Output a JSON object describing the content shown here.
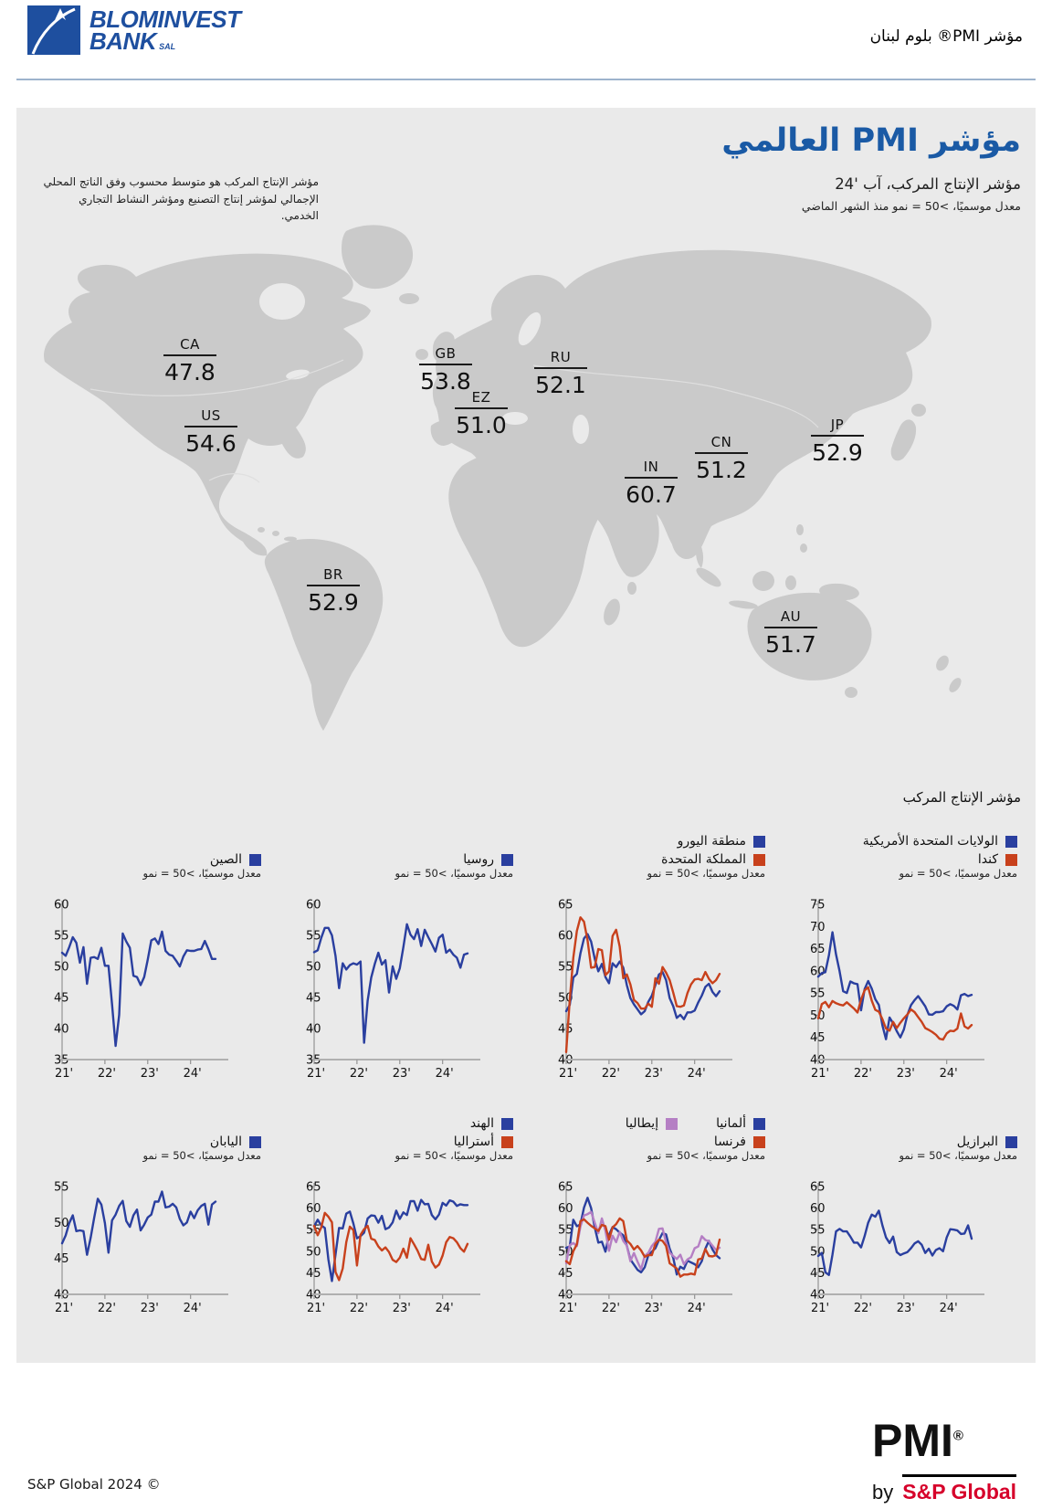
{
  "header": {
    "brand_line1": "BLOMINVEST",
    "brand_line2": "BANK",
    "brand_suffix": "SAL",
    "page_label": "مؤشر PMI® بلوم لبنان"
  },
  "report": {
    "title": "مؤشر PMI العالمي",
    "subtitle": "مؤشر الإنتاج المركب، آب '24",
    "subtitle_note": "معدل موسميًا، >50 = نمو منذ الشهر الماضي",
    "description": "مؤشر الإنتاج المركب هو متوسط محسوب وفق الناتج المحلي الإجمالي لمؤشر إنتاج التصنيع ومؤشر النشاط التجاري الخدمي."
  },
  "map": {
    "labels": [
      {
        "code": "CA",
        "value": "47.8"
      },
      {
        "code": "US",
        "value": "54.6"
      },
      {
        "code": "GB",
        "value": "53.8"
      },
      {
        "code": "EZ",
        "value": "51.0"
      },
      {
        "code": "RU",
        "value": "52.1"
      },
      {
        "code": "IN",
        "value": "60.7"
      },
      {
        "code": "CN",
        "value": "51.2"
      },
      {
        "code": "JP",
        "value": "52.9"
      },
      {
        "code": "BR",
        "value": "52.9"
      },
      {
        "code": "AU",
        "value": "51.7"
      }
    ]
  },
  "charts_section": {
    "title": "مؤشر الإنتاج المركب",
    "axis_note": "معدل موسميًا، >50 = نمو",
    "x_tick_labels": [
      "'21",
      "'22",
      "'23",
      "'24"
    ],
    "x_tick_indices": [
      0,
      12,
      24,
      36
    ]
  },
  "colors": {
    "blue": "#2a3f9f",
    "red": "#c8411c",
    "purple": "#b57fc4",
    "title_blue": "#1a5aa5",
    "brand_blue": "#1e4f9f",
    "sp_red": "#d6002a",
    "land": "#cacaca",
    "panel": "#eaeaea"
  },
  "chart_data": [
    {
      "id": "united-states-canada",
      "type": "line",
      "ylim": [
        40,
        75
      ],
      "ytick_step": 5,
      "x_range": "Jan 2021 - Aug 2024 monthly",
      "legend_rows": [
        [
          0
        ],
        [
          1
        ]
      ],
      "series": [
        {
          "name": "الولايات المتحدة الأمريكية",
          "color": "blue",
          "values": [
            58.7,
            59.5,
            59.7,
            63.5,
            68.7,
            63.7,
            59.9,
            55.4,
            55.0,
            57.6,
            57.2,
            57.0,
            51.1,
            55.9,
            57.7,
            56.0,
            53.6,
            52.3,
            47.7,
            44.6,
            49.5,
            48.2,
            46.4,
            45.0,
            46.8,
            50.1,
            52.3,
            53.4,
            54.3,
            53.2,
            52.0,
            50.2,
            50.1,
            50.7,
            50.7,
            50.9,
            52.0,
            52.5,
            52.1,
            51.3,
            54.5,
            54.8,
            54.3,
            54.6
          ]
        },
        {
          "name": "كندا",
          "color": "red",
          "values": [
            49.3,
            52.5,
            53.0,
            51.8,
            53.2,
            52.7,
            52.4,
            52.2,
            52.9,
            52.2,
            51.5,
            50.6,
            53.5,
            55.6,
            56.3,
            53.3,
            51.2,
            50.8,
            49.1,
            47.0,
            46.5,
            48.5,
            47.1,
            48.3,
            49.3,
            50.2,
            51.3,
            50.7,
            49.6,
            48.5,
            47.1,
            46.7,
            46.2,
            45.6,
            44.7,
            44.5,
            45.9,
            46.5,
            46.4,
            47.0,
            50.4,
            47.5,
            47.0,
            47.8
          ]
        }
      ]
    },
    {
      "id": "eurozone-uk",
      "type": "line",
      "ylim": [
        40,
        65
      ],
      "ytick_step": 5,
      "x_range": "Jan 2021 - Aug 2024 monthly",
      "legend_rows": [
        [
          0
        ],
        [
          1
        ]
      ],
      "series": [
        {
          "name": "منطقة اليورو",
          "color": "blue",
          "values": [
            47.8,
            48.8,
            53.2,
            53.8,
            57.1,
            59.5,
            60.2,
            59.0,
            56.2,
            54.2,
            55.4,
            53.3,
            52.3,
            55.5,
            54.9,
            55.8,
            54.8,
            52.0,
            49.9,
            48.9,
            48.1,
            47.3,
            47.8,
            49.3,
            50.3,
            52.0,
            53.7,
            54.1,
            52.8,
            49.9,
            48.6,
            46.7,
            47.2,
            46.5,
            47.6,
            47.6,
            47.9,
            49.2,
            50.3,
            51.7,
            52.2,
            50.9,
            50.2,
            51.0
          ]
        },
        {
          "name": "المملكة المتحدة",
          "color": "red",
          "values": [
            41.2,
            49.6,
            56.4,
            60.7,
            62.9,
            62.2,
            59.2,
            54.8,
            54.9,
            57.8,
            57.6,
            53.6,
            54.2,
            59.9,
            60.9,
            58.2,
            53.1,
            53.7,
            52.1,
            49.6,
            49.1,
            48.2,
            48.2,
            49.0,
            48.5,
            53.1,
            52.2,
            54.9,
            54.0,
            52.8,
            50.8,
            48.6,
            48.5,
            48.7,
            50.7,
            52.1,
            52.9,
            53.0,
            52.8,
            54.1,
            53.0,
            52.3,
            52.8,
            53.8
          ]
        }
      ]
    },
    {
      "id": "russia",
      "type": "line",
      "ylim": [
        35,
        60
      ],
      "ytick_step": 5,
      "x_range": "Jan 2021 - Aug 2024 monthly",
      "legend_rows": [
        [
          0
        ]
      ],
      "series": [
        {
          "name": "روسيا",
          "color": "blue",
          "values": [
            52.3,
            52.6,
            54.6,
            56.2,
            56.2,
            55.0,
            51.7,
            46.5,
            50.5,
            49.5,
            50.2,
            50.5,
            50.3,
            50.8,
            37.7,
            44.5,
            48.2,
            50.4,
            52.2,
            50.3,
            51.0,
            45.8,
            50.0,
            48.0,
            49.7,
            53.1,
            56.8,
            55.1,
            54.4,
            56.0,
            53.3,
            55.9,
            54.7,
            53.6,
            52.4,
            54.6,
            55.1,
            52.2,
            52.7,
            51.9,
            51.4,
            49.8,
            51.9,
            52.1
          ]
        }
      ]
    },
    {
      "id": "china",
      "type": "line",
      "ylim": [
        35,
        60
      ],
      "ytick_step": 5,
      "x_range": "Jan 2021 - Aug 2024 monthly",
      "legend_rows": [
        [
          0
        ]
      ],
      "series": [
        {
          "name": "الصين",
          "color": "blue",
          "values": [
            52.2,
            51.7,
            53.1,
            54.7,
            53.8,
            50.6,
            53.1,
            47.2,
            51.4,
            51.5,
            51.2,
            53.0,
            50.1,
            50.1,
            43.9,
            37.2,
            42.2,
            55.3,
            54.0,
            53.0,
            48.5,
            48.3,
            47.0,
            48.3,
            51.1,
            54.2,
            54.5,
            53.6,
            55.6,
            52.5,
            51.9,
            51.7,
            50.9,
            50.0,
            51.6,
            52.6,
            52.5,
            52.5,
            52.7,
            52.8,
            54.1,
            52.8,
            51.2,
            51.2
          ]
        }
      ]
    },
    {
      "id": "brazil",
      "type": "line",
      "ylim": [
        40,
        65
      ],
      "ytick_step": 5,
      "x_range": "Jan 2021 - Aug 2024 monthly",
      "legend_rows": [
        [
          0
        ]
      ],
      "series": [
        {
          "name": "البرازيل",
          "color": "blue",
          "values": [
            48.9,
            49.6,
            45.1,
            44.5,
            49.2,
            54.6,
            55.2,
            54.6,
            54.6,
            53.4,
            52.0,
            52.0,
            50.9,
            53.5,
            56.6,
            58.5,
            58.0,
            59.4,
            56.0,
            53.2,
            51.9,
            53.4,
            49.8,
            49.1,
            49.5,
            49.8,
            50.7,
            51.8,
            52.3,
            51.5,
            49.6,
            50.6,
            49.0,
            50.3,
            50.7,
            50.0,
            53.2,
            55.1,
            55.0,
            54.8,
            54.0,
            54.1,
            56.0,
            52.9
          ]
        }
      ]
    },
    {
      "id": "germany-italy-france",
      "type": "line",
      "ylim": [
        40,
        65
      ],
      "ytick_step": 5,
      "x_range": "Jan 2021 - Aug 2024 monthly",
      "legend_rows": [
        [
          0,
          1
        ],
        [
          2
        ]
      ],
      "series": [
        {
          "name": "ألمانيا",
          "color": "blue",
          "values": [
            50.8,
            51.1,
            57.3,
            55.8,
            56.2,
            60.1,
            62.4,
            60.0,
            55.5,
            52.0,
            52.2,
            49.9,
            53.8,
            55.6,
            55.1,
            54.3,
            53.7,
            51.3,
            48.1,
            46.9,
            45.7,
            45.1,
            46.3,
            49.0,
            49.9,
            50.7,
            52.6,
            54.2,
            53.9,
            50.6,
            48.5,
            44.6,
            46.4,
            45.9,
            47.8,
            47.4,
            47.0,
            46.3,
            47.7,
            50.6,
            52.4,
            50.4,
            49.1,
            48.4
          ]
        },
        {
          "name": "إيطاليا",
          "color": "purple",
          "values": [
            47.2,
            51.4,
            51.9,
            51.2,
            55.7,
            58.3,
            58.6,
            59.1,
            56.6,
            54.2,
            57.6,
            54.7,
            50.1,
            53.6,
            52.1,
            54.5,
            52.4,
            51.3,
            47.7,
            49.6,
            47.6,
            45.8,
            48.9,
            49.6,
            51.2,
            52.2,
            55.2,
            55.3,
            52.0,
            49.7,
            48.9,
            48.2,
            49.2,
            47.0,
            48.1,
            48.6,
            50.7,
            51.1,
            53.5,
            52.6,
            52.3,
            51.3,
            50.3,
            50.8
          ]
        },
        {
          "name": "فرنسا",
          "color": "red",
          "values": [
            47.7,
            47.0,
            50.0,
            51.6,
            57.0,
            57.4,
            56.6,
            55.9,
            55.3,
            54.7,
            56.1,
            55.8,
            52.7,
            55.5,
            56.3,
            57.6,
            57.0,
            52.5,
            51.7,
            50.4,
            51.2,
            50.2,
            48.7,
            49.1,
            49.1,
            51.7,
            52.7,
            52.4,
            51.2,
            47.2,
            46.6,
            46.0,
            44.1,
            44.6,
            44.6,
            44.8,
            44.6,
            48.1,
            48.3,
            50.5,
            48.9,
            48.8,
            49.1,
            52.7
          ]
        }
      ]
    },
    {
      "id": "india-australia",
      "type": "line",
      "ylim": [
        40,
        65
      ],
      "ytick_step": 5,
      "x_range": "Jan 2021 - Aug 2024 monthly",
      "legend_rows": [
        [
          0
        ],
        [
          1
        ]
      ],
      "series": [
        {
          "name": "الهند",
          "color": "blue",
          "values": [
            55.8,
            57.3,
            56.0,
            55.4,
            48.1,
            43.1,
            49.2,
            55.4,
            55.3,
            58.7,
            59.2,
            56.4,
            53.0,
            53.5,
            54.3,
            57.6,
            58.3,
            58.2,
            56.6,
            58.2,
            55.1,
            55.5,
            56.7,
            59.4,
            57.5,
            59.0,
            58.4,
            61.6,
            61.6,
            59.4,
            61.9,
            60.9,
            61.0,
            58.4,
            57.4,
            58.5,
            61.2,
            60.6,
            61.8,
            61.5,
            60.5,
            60.9,
            60.7,
            60.7
          ]
        },
        {
          "name": "أستراليا",
          "color": "red",
          "values": [
            55.9,
            53.7,
            55.5,
            58.9,
            58.0,
            56.7,
            45.2,
            43.3,
            46.0,
            52.1,
            55.7,
            54.9,
            46.7,
            53.8,
            55.1,
            55.9,
            52.9,
            52.6,
            51.1,
            50.2,
            50.9,
            49.8,
            48.0,
            47.5,
            48.5,
            50.6,
            48.5,
            53.0,
            51.6,
            50.1,
            48.2,
            48.0,
            51.5,
            47.6,
            46.2,
            46.9,
            49.0,
            52.1,
            53.3,
            53.0,
            52.1,
            50.7,
            49.9,
            51.7
          ]
        }
      ]
    },
    {
      "id": "japan",
      "type": "line",
      "ylim": [
        40,
        55
      ],
      "ytick_step": 5,
      "x_range": "Jan 2021 - Aug 2024 monthly",
      "legend_rows": [
        [
          0
        ]
      ],
      "series": [
        {
          "name": "اليابان",
          "color": "blue",
          "values": [
            47.1,
            48.2,
            49.9,
            51.0,
            48.8,
            48.9,
            48.8,
            45.5,
            47.9,
            50.7,
            53.3,
            52.5,
            49.9,
            45.8,
            50.3,
            51.1,
            52.3,
            53.0,
            50.2,
            49.4,
            51.0,
            51.8,
            48.9,
            49.7,
            50.7,
            51.1,
            52.9,
            52.9,
            54.3,
            52.1,
            52.2,
            52.6,
            52.1,
            50.5,
            49.6,
            50.0,
            51.5,
            50.6,
            51.7,
            52.3,
            52.6,
            49.7,
            52.5,
            52.9
          ]
        }
      ]
    }
  ],
  "footer": {
    "copyright": "S&P Global 2024 ©",
    "pmi_word": "PMI",
    "pmi_reg": "®",
    "by": "by",
    "sp_global": "S&P Global"
  }
}
